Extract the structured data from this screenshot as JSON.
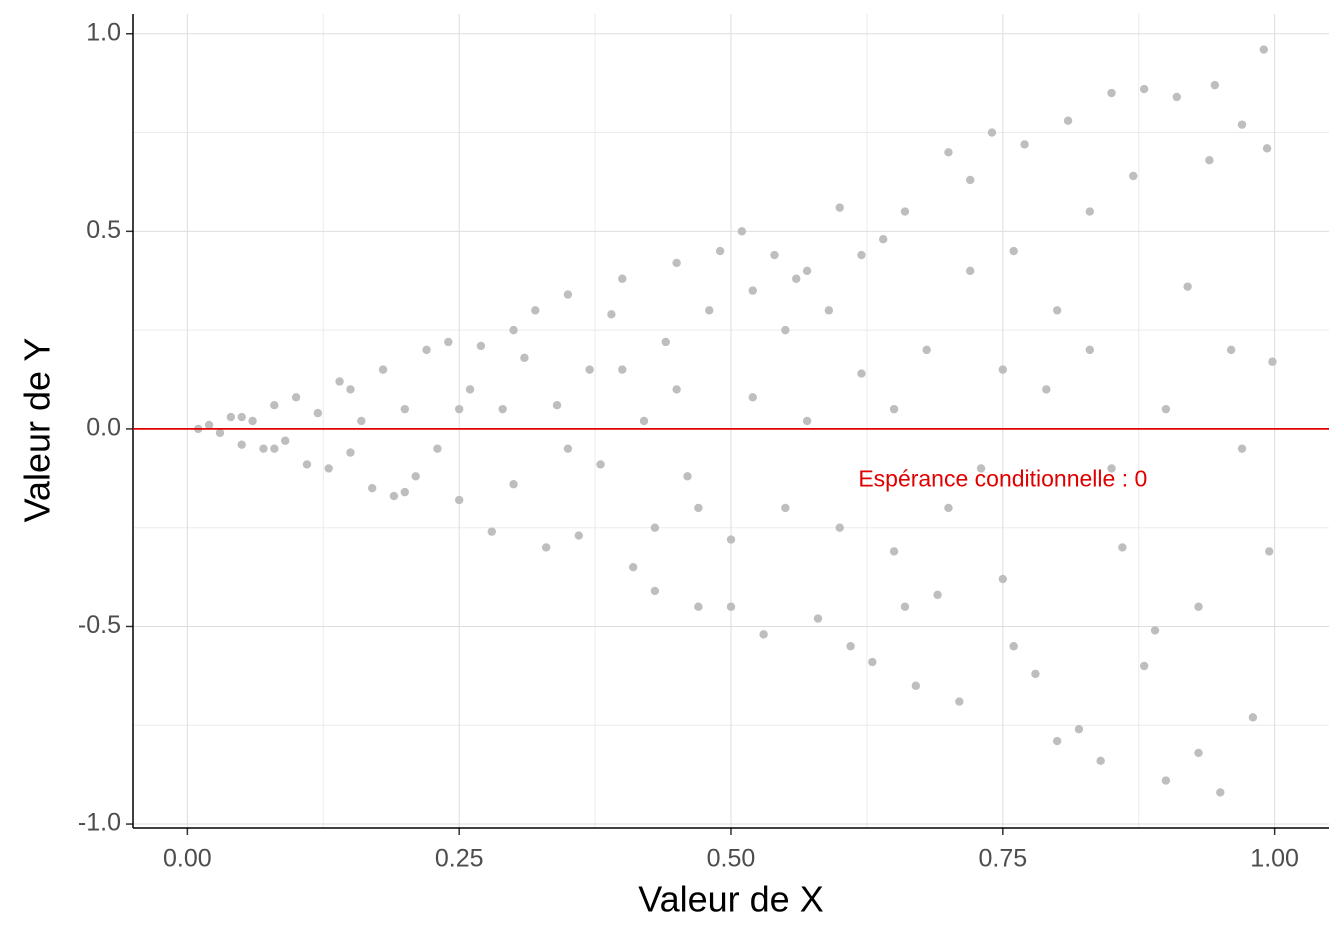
{
  "chart_data": {
    "type": "scatter",
    "xlabel": "Valeur de X",
    "ylabel": "Valeur de Y",
    "xlim": [
      -0.05,
      1.05
    ],
    "ylim": [
      -1.01,
      1.05
    ],
    "xticks": [
      {
        "value": 0,
        "label": "0.00"
      },
      {
        "value": 0.25,
        "label": "0.25"
      },
      {
        "value": 0.5,
        "label": "0.50"
      },
      {
        "value": 0.75,
        "label": "0.75"
      },
      {
        "value": 1,
        "label": "1.00"
      }
    ],
    "yticks": [
      {
        "value": -1,
        "label": "-1.0"
      },
      -0.5,
      {
        "value": 0,
        "label": "0.0"
      },
      0.5,
      {
        "value": 1,
        "label": "1.0"
      }
    ],
    "x_minor_ticks": [
      0.125,
      0.375,
      0.625,
      0.875
    ],
    "y_minor_ticks": [
      -0.75,
      -0.25,
      0.25,
      0.75
    ],
    "grid": true,
    "color": "#bebebe",
    "hline": {
      "y": 0,
      "color": "#e00000"
    },
    "annotation": {
      "text": "Espérance conditionnelle : 0",
      "x": 0.75,
      "y": -0.13,
      "color": "#e00000"
    },
    "x": [
      0.01,
      0.02,
      0.03,
      0.04,
      0.05,
      0.06,
      0.07,
      0.08,
      0.09,
      0.1,
      0.11,
      0.12,
      0.13,
      0.14,
      0.15,
      0.16,
      0.17,
      0.18,
      0.19,
      0.2,
      0.21,
      0.22,
      0.23,
      0.24,
      0.25,
      0.26,
      0.27,
      0.28,
      0.29,
      0.3,
      0.31,
      0.32,
      0.33,
      0.34,
      0.35,
      0.36,
      0.37,
      0.38,
      0.39,
      0.4,
      0.41,
      0.42,
      0.43,
      0.44,
      0.45,
      0.46,
      0.47,
      0.48,
      0.49,
      0.5,
      0.51,
      0.52,
      0.53,
      0.54,
      0.55,
      0.56,
      0.57,
      0.58,
      0.59,
      0.6,
      0.61,
      0.62,
      0.63,
      0.64,
      0.65,
      0.66,
      0.67,
      0.68,
      0.69,
      0.7,
      0.71,
      0.72,
      0.73,
      0.74,
      0.75,
      0.76,
      0.77,
      0.78,
      0.79,
      0.8,
      0.81,
      0.82,
      0.83,
      0.84,
      0.85,
      0.86,
      0.87,
      0.88,
      0.89,
      0.9,
      0.91,
      0.92,
      0.93,
      0.94,
      0.945,
      0.95,
      0.96,
      0.97,
      0.98,
      0.99,
      0.995,
      0.993,
      0.998,
      0.35,
      0.45,
      0.55,
      0.65,
      0.75,
      0.85,
      0.25,
      0.6,
      0.7,
      0.8,
      0.9,
      0.5,
      0.4,
      0.3,
      0.2,
      0.15,
      0.05,
      0.08,
      0.66,
      0.72,
      0.88,
      0.93,
      0.57,
      0.47,
      0.83,
      0.62,
      0.76,
      0.97,
      0.43,
      0.52
    ],
    "values": [
      0.0,
      0.01,
      -0.01,
      0.03,
      -0.04,
      0.02,
      -0.05,
      0.06,
      -0.03,
      0.08,
      -0.09,
      0.04,
      -0.1,
      0.12,
      -0.06,
      0.02,
      -0.15,
      0.15,
      -0.17,
      0.05,
      -0.12,
      0.2,
      -0.05,
      0.22,
      -0.18,
      0.1,
      0.21,
      -0.26,
      0.05,
      -0.14,
      0.18,
      0.3,
      -0.3,
      0.06,
      0.34,
      -0.27,
      0.15,
      -0.09,
      0.29,
      0.38,
      -0.35,
      0.02,
      -0.41,
      0.22,
      0.42,
      -0.12,
      -0.45,
      0.3,
      0.45,
      -0.28,
      0.5,
      0.08,
      -0.52,
      0.44,
      -0.2,
      0.38,
      0.02,
      -0.48,
      0.3,
      0.56,
      -0.55,
      0.14,
      -0.59,
      0.48,
      -0.31,
      0.55,
      -0.65,
      0.2,
      -0.42,
      0.7,
      -0.69,
      0.63,
      -0.1,
      0.75,
      -0.38,
      0.45,
      0.72,
      -0.62,
      0.1,
      -0.79,
      0.78,
      -0.76,
      0.55,
      -0.84,
      0.85,
      -0.3,
      0.64,
      0.86,
      -0.51,
      -0.89,
      0.84,
      0.36,
      -0.82,
      0.68,
      0.87,
      -0.92,
      0.2,
      0.77,
      -0.73,
      0.96,
      -0.31,
      0.71,
      0.17,
      -0.05,
      0.1,
      0.25,
      0.05,
      0.15,
      -0.1,
      0.05,
      -0.25,
      -0.2,
      0.3,
      0.05,
      -0.45,
      0.15,
      0.25,
      -0.16,
      0.1,
      0.03,
      -0.05,
      -0.45,
      0.4,
      -0.6,
      -0.45,
      0.4,
      -0.2,
      0.2,
      0.44,
      -0.55,
      -0.05,
      -0.25,
      0.35
    ]
  }
}
